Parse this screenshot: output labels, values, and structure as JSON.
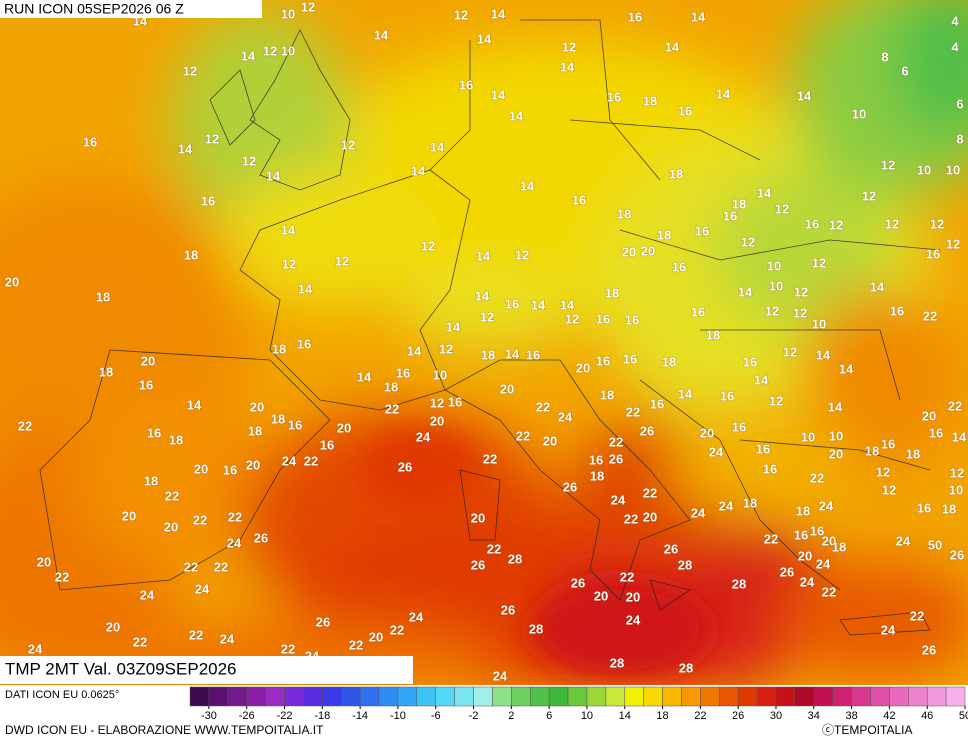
{
  "header": {
    "run": "RUN ICON 05SEP2026 06 Z",
    "field": "TMP 2MT Val. 03Z09SEP2026"
  },
  "footer": {
    "source": "DATI ICON EU 0.0625°",
    "credit": "DWD ICON EU - ELABORAZIONE WWW.TEMPOITALIA.IT",
    "copyright": "ⓒTEMPOITALIA"
  },
  "colorbar": {
    "range": [
      -32,
      50
    ],
    "ticks": [
      -30,
      -26,
      -22,
      -18,
      -14,
      -10,
      -6,
      -2,
      2,
      6,
      10,
      14,
      18,
      22,
      26,
      30,
      34,
      38,
      42,
      46,
      50
    ],
    "colors": [
      "#3d0a4d",
      "#5a1070",
      "#731a8c",
      "#8a1fa6",
      "#9b2bc4",
      "#7a2ad8",
      "#5a2ee0",
      "#3a3ae6",
      "#2f55e8",
      "#3070f0",
      "#2f8cf5",
      "#30a8f5",
      "#3cc4f5",
      "#55d8f5",
      "#7ae6f0",
      "#a0f0e8",
      "#8ee08a",
      "#6fd060",
      "#4fc048",
      "#3db83a",
      "#6ac83a",
      "#9ad83a",
      "#c8e83a",
      "#f0f000",
      "#f8d800",
      "#f8b800",
      "#f89800",
      "#f07800",
      "#e85800",
      "#e03800",
      "#d82010",
      "#c81018",
      "#b00828",
      "#c01050",
      "#d02070",
      "#d83890",
      "#e050a8",
      "#e868c0",
      "#f080d0",
      "#f098e0",
      "#f8b0ec"
    ]
  },
  "map_labels": [
    10,
    12,
    14,
    14,
    12,
    10,
    12,
    14,
    12,
    14,
    14,
    12,
    14,
    16,
    14,
    14,
    16,
    14,
    14,
    16,
    18,
    16,
    14,
    14,
    10,
    8,
    6,
    4,
    4,
    6,
    8,
    16,
    14,
    12,
    12,
    12,
    14,
    16,
    14,
    14,
    14,
    16,
    18,
    18,
    18,
    16,
    16,
    14,
    12,
    18,
    16,
    12,
    12,
    12,
    10,
    10,
    12,
    12,
    12,
    16,
    14,
    12,
    12,
    12,
    14,
    12,
    20,
    20,
    16,
    12,
    10,
    12,
    14,
    22,
    16,
    18,
    20,
    18,
    14,
    14,
    16,
    14,
    14,
    12,
    16,
    18,
    16,
    14,
    10,
    12,
    12,
    12,
    10,
    16,
    18,
    18,
    16,
    14,
    12,
    12,
    14,
    16,
    10,
    18,
    14,
    16,
    20,
    16,
    16,
    18,
    14,
    16,
    14,
    12,
    14,
    14,
    20,
    18,
    16,
    14,
    14,
    18,
    22,
    12,
    16,
    20,
    22,
    24,
    18,
    22,
    16,
    16,
    12,
    14,
    20,
    22,
    22,
    16,
    18,
    20,
    18,
    18,
    16,
    20,
    16,
    24,
    20,
    22,
    20,
    22,
    26,
    20,
    16,
    24,
    16,
    10,
    10,
    20,
    18,
    16,
    18,
    16,
    14,
    20,
    16,
    20,
    24,
    22,
    26,
    18,
    22,
    16,
    26,
    18,
    26,
    22,
    24,
    22,
    24,
    24,
    22,
    20,
    16,
    22,
    18,
    12,
    12,
    12,
    10,
    16,
    18,
    18,
    24,
    16,
    22,
    16,
    20,
    18,
    20,
    20,
    22,
    22,
    26,
    24,
    20,
    22,
    28,
    26,
    26,
    28,
    20,
    24,
    26,
    24,
    22,
    24,
    50,
    26,
    20,
    22,
    22,
    22,
    24,
    24,
    26,
    20,
    22,
    20,
    28,
    26,
    28,
    24,
    26,
    24,
    22,
    20,
    22,
    22,
    24,
    24,
    22,
    22,
    20,
    24,
    22,
    24,
    26,
    28,
    28,
    24
  ]
}
